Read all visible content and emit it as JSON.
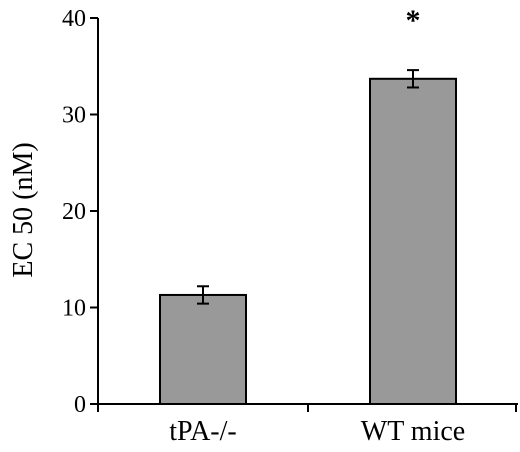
{
  "chart_data": {
    "type": "bar",
    "categories": [
      "tPA-/-",
      "WT mice"
    ],
    "values": [
      11.3,
      33.7
    ],
    "errors": [
      0.9,
      0.9
    ],
    "ylabel": "EC 50 (nM)",
    "xlabel": "",
    "ylim": [
      0,
      40
    ],
    "yticks": [
      0,
      10,
      20,
      30,
      40
    ],
    "yticklabels": [
      "0",
      "10",
      "20",
      "30",
      "40"
    ],
    "annotations": [
      {
        "category": "WT mice",
        "text": "*"
      }
    ],
    "bar_color": "#999999",
    "bar_edge_color": "#000000",
    "grid": false,
    "legend": "none"
  }
}
